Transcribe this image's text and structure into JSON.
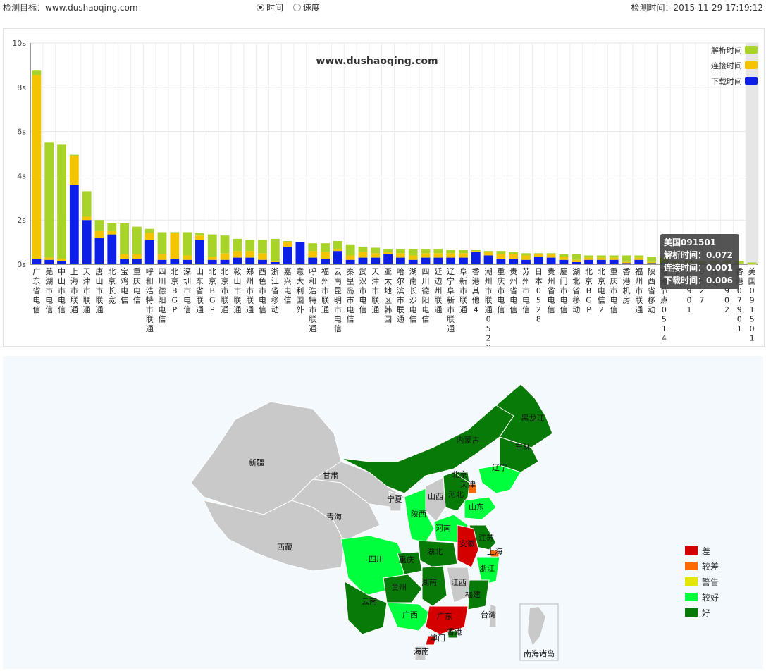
{
  "header": {
    "target_label": "检测目标：www.dushaoqing.com",
    "mode_options": [
      {
        "label": "时间",
        "selected": true
      },
      {
        "label": "速度",
        "selected": false
      }
    ],
    "check_time": "检测时间：2015-11-29 17:19:12"
  },
  "chart_data": {
    "type": "bar",
    "stacked": true,
    "watermark": "www.dushaoqing.com",
    "y_unit": "s",
    "ylim": [
      0,
      10
    ],
    "yticks": [
      "0s",
      "2s",
      "4s",
      "6s",
      "8s",
      "10s"
    ],
    "categories": [
      "广东省电信",
      "芜湖市电信",
      "中山市电信",
      "上海市联通",
      "天津市联通",
      "唐山市联通",
      "北京长宽",
      "宝鸡电信",
      "重庆电信",
      "呼和浩特市联通",
      "四川德阳电信",
      "北京BGP",
      "深圳市电信",
      "山东省联通",
      "北京BGP",
      "北京市联通",
      "鞍山市联通",
      "郑州市联通",
      "酉色市电信",
      "浙江省移动",
      "嘉兴电信",
      "意大利国外",
      "呼和浩特市联通",
      "福州市联通",
      "云南昆明市电信",
      "秦皇岛市电信",
      "武汉市电信",
      "天津市联通",
      "亚太地区韩国",
      "哈尔滨市联通",
      "湖南长沙电信",
      "四川德阳电信",
      "延边州联通",
      "辽宁阜新市联通",
      "阜新市联通",
      "香港其他4",
      "潮州市联通0528",
      "重庆市电信",
      "贵州省电信",
      "苏州市电信",
      "日本0528",
      "贵州省电信",
      "厦门市电信",
      "湖北省移动",
      "北京BGP",
      "北京电信2",
      "重庆市电信",
      "香港机房",
      "福州市联通",
      "陕西省移动",
      "香港节点0514",
      "节点",
      "07901",
      "0527",
      "其他",
      "07902",
      "香港07901",
      "美国091501"
    ],
    "series": [
      {
        "name": "下载时间",
        "color": "#0b1fe8",
        "values": [
          0.25,
          0.2,
          0.15,
          3.6,
          2.0,
          1.2,
          1.35,
          0.25,
          0.25,
          1.1,
          0.2,
          0.25,
          0.2,
          1.1,
          0.2,
          0.2,
          0.3,
          0.3,
          0.2,
          0.1,
          0.8,
          1.0,
          0.3,
          0.25,
          0.6,
          0.2,
          0.3,
          0.3,
          0.45,
          0.3,
          0.2,
          0.3,
          0.3,
          0.3,
          0.3,
          0.55,
          0.4,
          0.25,
          0.25,
          0.2,
          0.35,
          0.3,
          0.2,
          0.1,
          0.2,
          0.2,
          0.2,
          0.05,
          0.2,
          0.05,
          0.05,
          0.02,
          0.02,
          0.02,
          0.02,
          0.02,
          0.02,
          0.006
        ]
      },
      {
        "name": "连接时间",
        "color": "#f5c400",
        "values": [
          8.3,
          0.1,
          0.1,
          1.3,
          0.15,
          0.3,
          0.15,
          0.2,
          0.2,
          0.3,
          0.25,
          1.15,
          0.2,
          0.2,
          0.15,
          0.3,
          0.3,
          0.3,
          0.3,
          0.05,
          0.2,
          0.0,
          0.3,
          0.3,
          0.1,
          0.2,
          0.25,
          0.2,
          0.1,
          0.2,
          0.2,
          0.2,
          0.2,
          0.2,
          0.2,
          0.05,
          0.15,
          0.2,
          0.2,
          0.2,
          0.1,
          0.15,
          0.15,
          0.1,
          0.1,
          0.1,
          0.1,
          0.05,
          0.1,
          0.05,
          0.05,
          0.02,
          0.02,
          0.02,
          0.02,
          0.02,
          0.02,
          0.001
        ]
      },
      {
        "name": "解析时间",
        "color": "#a8d42a",
        "values": [
          0.2,
          5.2,
          5.15,
          0.05,
          1.15,
          0.5,
          0.35,
          1.4,
          1.25,
          0.2,
          1.0,
          0.05,
          1.05,
          0.1,
          1.0,
          0.8,
          0.55,
          0.5,
          0.6,
          1.0,
          0.05,
          0.0,
          0.35,
          0.4,
          0.35,
          0.5,
          0.25,
          0.25,
          0.15,
          0.2,
          0.3,
          0.2,
          0.2,
          0.15,
          0.15,
          0.05,
          0.05,
          0.15,
          0.1,
          0.1,
          0.05,
          0.05,
          0.1,
          0.25,
          0.1,
          0.1,
          0.1,
          0.3,
          0.1,
          0.25,
          0.2,
          0.1,
          0.1,
          0.1,
          0.1,
          0.1,
          0.1,
          0.072
        ]
      }
    ],
    "legend_position": "top-right",
    "grid": true,
    "highlighted_category": "美国091501"
  },
  "tooltip": {
    "title": "美国091501",
    "lines": [
      "解析时间：0.072",
      "连接时间：0.001",
      "下载时间：0.006"
    ]
  },
  "map": {
    "regions": [
      {
        "name": "新疆",
        "status": "none"
      },
      {
        "name": "西藏",
        "status": "none"
      },
      {
        "name": "青海",
        "status": "none"
      },
      {
        "name": "甘肃",
        "status": "none"
      },
      {
        "name": "内蒙古",
        "status": "good"
      },
      {
        "name": "黑龙江",
        "status": "good"
      },
      {
        "name": "吉林",
        "status": "good"
      },
      {
        "name": "辽宁",
        "status": "better"
      },
      {
        "name": "北京",
        "status": "good"
      },
      {
        "name": "天津",
        "status": "poor"
      },
      {
        "name": "河北",
        "status": "good"
      },
      {
        "name": "山西",
        "status": "none"
      },
      {
        "name": "山东",
        "status": "better"
      },
      {
        "name": "宁夏",
        "status": "none"
      },
      {
        "name": "陕西",
        "status": "better"
      },
      {
        "name": "河南",
        "status": "better"
      },
      {
        "name": "江苏",
        "status": "good"
      },
      {
        "name": "上海",
        "status": "poor"
      },
      {
        "name": "安徽",
        "status": "bad"
      },
      {
        "name": "浙江",
        "status": "better"
      },
      {
        "name": "四川",
        "status": "better"
      },
      {
        "name": "重庆",
        "status": "good"
      },
      {
        "name": "湖北",
        "status": "good"
      },
      {
        "name": "贵州",
        "status": "good"
      },
      {
        "name": "湖南",
        "status": "good"
      },
      {
        "name": "江西",
        "status": "none"
      },
      {
        "name": "福建",
        "status": "good"
      },
      {
        "name": "云南",
        "status": "good"
      },
      {
        "name": "广西",
        "status": "better"
      },
      {
        "name": "广东",
        "status": "bad"
      },
      {
        "name": "澳门",
        "status": "bad"
      },
      {
        "name": "香港",
        "status": "good"
      },
      {
        "name": "台湾",
        "status": "none"
      },
      {
        "name": "海南",
        "status": "none"
      }
    ],
    "inset_label": "南海诸岛",
    "legend": [
      {
        "label": "差",
        "color": "#d40000"
      },
      {
        "label": "较差",
        "color": "#ff6a00"
      },
      {
        "label": "警告",
        "color": "#e6e600"
      },
      {
        "label": "较好",
        "color": "#00ff3c"
      },
      {
        "label": "好",
        "color": "#087a08"
      }
    ]
  }
}
